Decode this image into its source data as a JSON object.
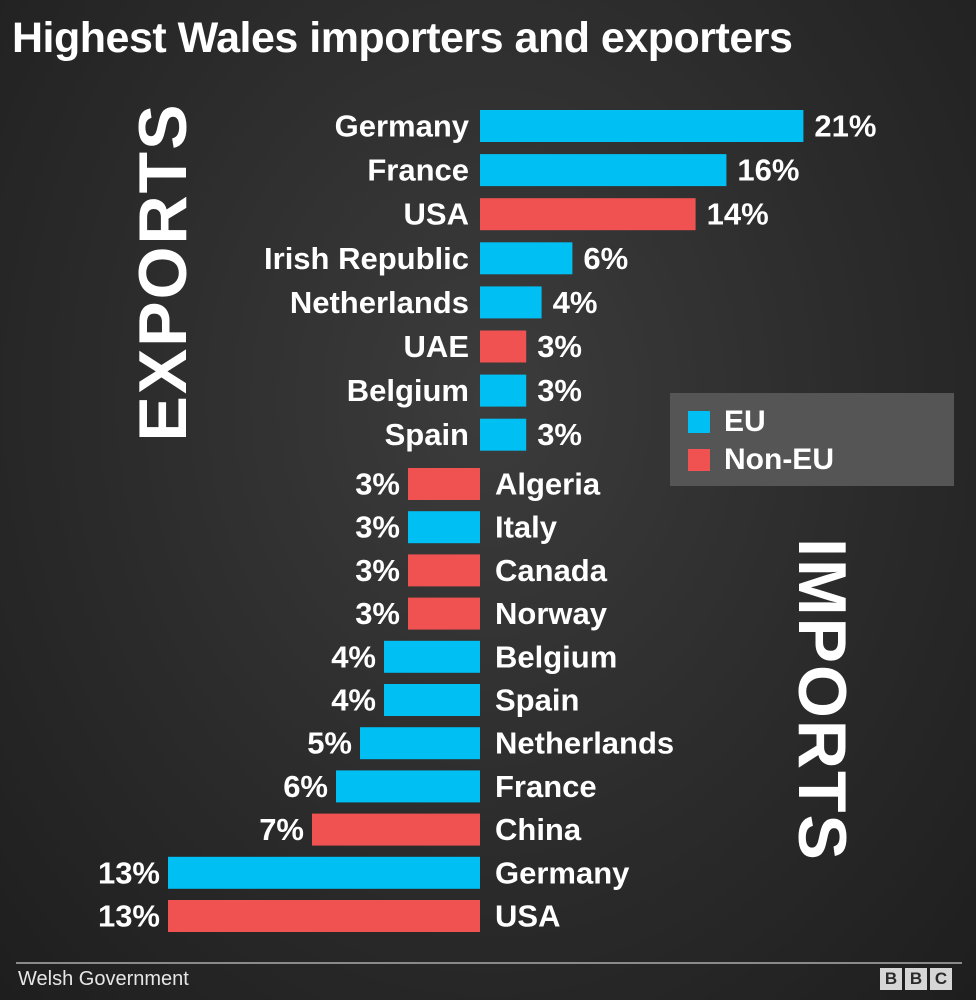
{
  "title": "Highest Wales importers and exporters",
  "exports_label": "EXPORTS",
  "imports_label": "IMPORTS",
  "source": "Welsh Government",
  "logo": [
    "B",
    "B",
    "C"
  ],
  "legend": {
    "eu": "EU",
    "non_eu": "Non-EU"
  },
  "colors": {
    "eu": "#00bff2",
    "non_eu": "#ef5251"
  },
  "chart_data": [
    {
      "type": "bar",
      "name": "EXPORTS",
      "unit": "%",
      "categories": [
        "Germany",
        "France",
        "USA",
        "Irish Republic",
        "Netherlands",
        "UAE",
        "Belgium",
        "Spain"
      ],
      "values": [
        21,
        16,
        14,
        6,
        4,
        3,
        3,
        3
      ],
      "labels": [
        "21%",
        "16%",
        "14%",
        "6%",
        "4%",
        "3%",
        "3%",
        "3%"
      ],
      "group": [
        "EU",
        "EU",
        "Non-EU",
        "EU",
        "EU",
        "Non-EU",
        "EU",
        "EU"
      ]
    },
    {
      "type": "bar",
      "name": "IMPORTS",
      "unit": "%",
      "categories": [
        "Algeria",
        "Italy",
        "Canada",
        "Norway",
        "Belgium",
        "Spain",
        "Netherlands",
        "France",
        "China",
        "Germany",
        "USA"
      ],
      "values": [
        3,
        3,
        3,
        3,
        4,
        4,
        5,
        6,
        7,
        13,
        13
      ],
      "labels": [
        "3%",
        "3%",
        "3%",
        "3%",
        "4%",
        "4%",
        "5%",
        "6%",
        "7%",
        "13%",
        "13%"
      ],
      "group": [
        "Non-EU",
        "EU",
        "Non-EU",
        "Non-EU",
        "EU",
        "EU",
        "EU",
        "EU",
        "Non-EU",
        "EU",
        "Non-EU"
      ]
    }
  ]
}
